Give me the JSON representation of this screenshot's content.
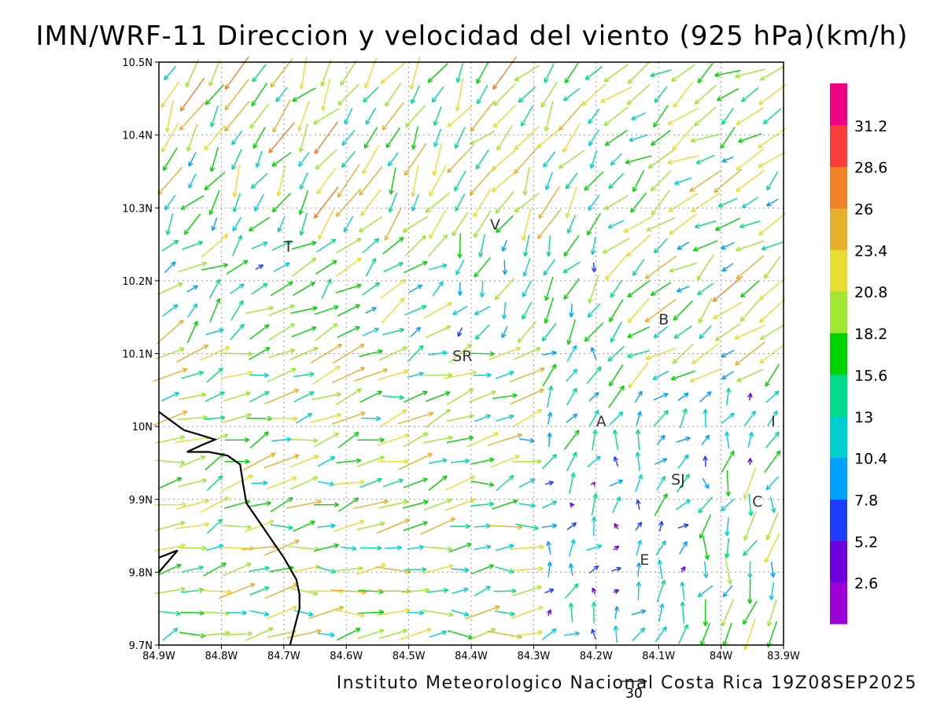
{
  "title": "IMN/WRF-11 Direccion y velocidad del viento (925 hPa)(km/h)",
  "footer": "Instituto Meteorologico Nacional Costa Rica  19Z08SEP2025",
  "reference_vector": {
    "label": "30",
    "value": 30
  },
  "colors": {
    "gridline": "#999999",
    "coast": "#000000",
    "frame": "#000000",
    "colorbar": [
      "#9b00d7",
      "#6e00e0",
      "#1d3cff",
      "#00a0ff",
      "#00cfcf",
      "#00dc8c",
      "#00d300",
      "#a0e632",
      "#e6dc32",
      "#e6af2d",
      "#f08228",
      "#fa3c3c",
      "#f00082"
    ]
  },
  "chart_data": {
    "type": "wind-vector-map",
    "title": "IMN/WRF-11 Direccion y velocidad del viento (925 hPa)(km/h)",
    "xlim": [
      -84.9,
      -83.9
    ],
    "ylim": [
      9.7,
      10.5
    ],
    "x_ticks": [
      "84.9W",
      "84.8W",
      "84.7W",
      "84.6W",
      "84.5W",
      "84.4W",
      "84.3W",
      "84.2W",
      "84.1W",
      "84W",
      "83.9W"
    ],
    "y_ticks": [
      "9.7N",
      "9.8N",
      "9.9N",
      "10N",
      "10.1N",
      "10.2N",
      "10.3N",
      "10.4N",
      "10.5N"
    ],
    "grid": true,
    "colorbar_levels": [
      "2.6",
      "5.2",
      "7.8",
      "10.4",
      "13",
      "15.6",
      "18.2",
      "20.8",
      "23.4",
      "26",
      "28.6",
      "31.2"
    ],
    "units": "km/h",
    "place_labels": [
      {
        "text": "V",
        "lon": -84.37,
        "lat": 10.27
      },
      {
        "text": "SR",
        "lon": -84.43,
        "lat": 10.09
      },
      {
        "text": "B",
        "lon": -84.1,
        "lat": 10.14
      },
      {
        "text": "A",
        "lon": -84.2,
        "lat": 10.0
      },
      {
        "text": "I",
        "lon": -83.92,
        "lat": 10.0
      },
      {
        "text": "SJ",
        "lon": -84.08,
        "lat": 9.92
      },
      {
        "text": "C",
        "lon": -83.95,
        "lat": 9.89
      },
      {
        "text": "E",
        "lon": -84.13,
        "lat": 9.81
      },
      {
        "text": "T",
        "lon": -84.7,
        "lat": 10.24
      }
    ],
    "coastline": [
      [
        -84.9,
        10.02
      ],
      [
        -84.86,
        9.995
      ],
      [
        -84.84,
        9.99
      ],
      [
        -84.81,
        9.982
      ],
      [
        -84.83,
        9.975
      ],
      [
        -84.855,
        9.965
      ],
      [
        -84.82,
        9.965
      ],
      [
        -84.79,
        9.96
      ],
      [
        -84.77,
        9.948
      ],
      [
        -84.765,
        9.92
      ],
      [
        -84.76,
        9.895
      ],
      [
        -84.74,
        9.87
      ],
      [
        -84.72,
        9.845
      ],
      [
        -84.7,
        9.82
      ],
      [
        -84.68,
        9.79
      ],
      [
        -84.675,
        9.77
      ],
      [
        -84.675,
        9.75
      ],
      [
        -84.69,
        9.7
      ]
    ],
    "coastline_2": [
      [
        -84.9,
        9.8
      ],
      [
        -84.87,
        9.83
      ],
      [
        -84.9,
        9.82
      ]
    ]
  }
}
